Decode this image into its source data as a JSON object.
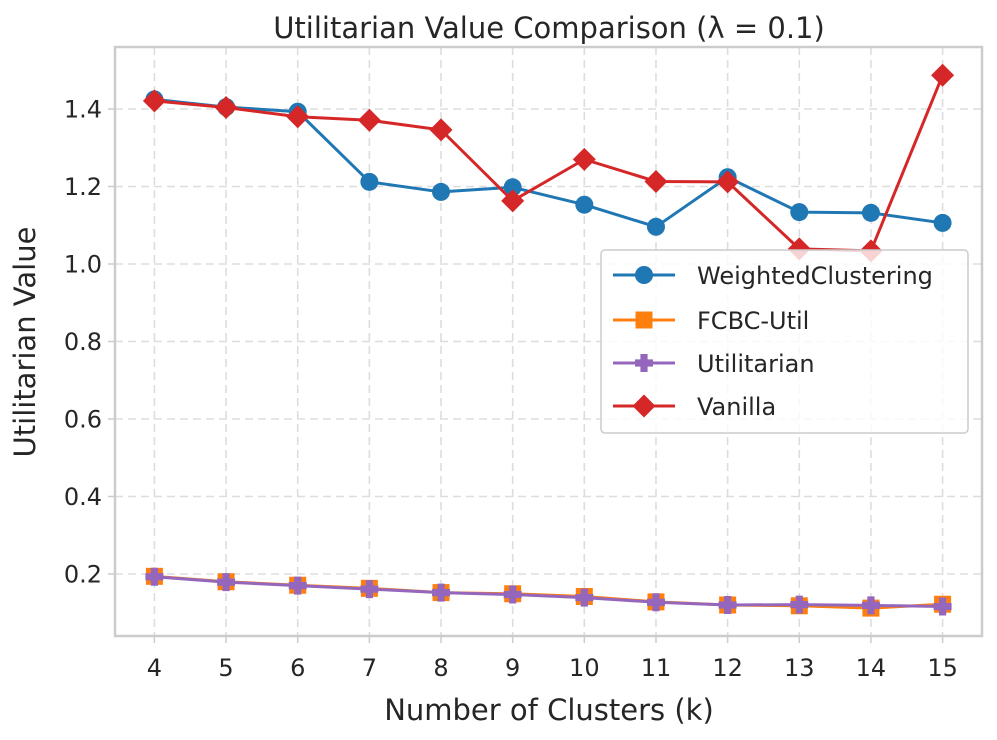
{
  "chart_data": {
    "type": "line",
    "title": "Utilitarian Value Comparison (λ = 0.1)",
    "xlabel": "Number of Clusters (k)",
    "ylabel": "Utilitarian Value",
    "x": [
      4,
      5,
      6,
      7,
      8,
      9,
      10,
      11,
      12,
      13,
      14,
      15
    ],
    "xlim": [
      3.45,
      15.55
    ],
    "ylim": [
      0.04,
      1.56
    ],
    "yticks": [
      0.2,
      0.4,
      0.6,
      0.8,
      1.0,
      1.2,
      1.4
    ],
    "ytick_labels": [
      "0.2",
      "0.4",
      "0.6",
      "0.8",
      "1.0",
      "1.2",
      "1.4"
    ],
    "xtick_labels": [
      "4",
      "5",
      "6",
      "7",
      "8",
      "9",
      "10",
      "11",
      "12",
      "13",
      "14",
      "15"
    ],
    "grid": true,
    "legend_position": "center-right",
    "series": [
      {
        "name": "WeightedClustering",
        "color": "#1f77b4",
        "marker": "circle",
        "values": [
          1.425,
          1.405,
          1.393,
          1.212,
          1.186,
          1.198,
          1.153,
          1.096,
          1.224,
          1.134,
          1.132,
          1.106
        ]
      },
      {
        "name": "FCBC-Util",
        "color": "#ff7f0e",
        "marker": "square",
        "values": [
          0.194,
          0.18,
          0.171,
          0.163,
          0.152,
          0.149,
          0.142,
          0.128,
          0.12,
          0.118,
          0.112,
          0.122
        ]
      },
      {
        "name": "Utilitarian",
        "color": "#9467bd",
        "marker": "plus",
        "values": [
          0.193,
          0.179,
          0.17,
          0.161,
          0.152,
          0.147,
          0.139,
          0.127,
          0.12,
          0.121,
          0.119,
          0.116
        ]
      },
      {
        "name": "Vanilla",
        "color": "#d62728",
        "marker": "diamond",
        "values": [
          1.421,
          1.404,
          1.38,
          1.371,
          1.346,
          1.163,
          1.27,
          1.213,
          1.212,
          1.039,
          1.034,
          1.487
        ]
      }
    ]
  }
}
